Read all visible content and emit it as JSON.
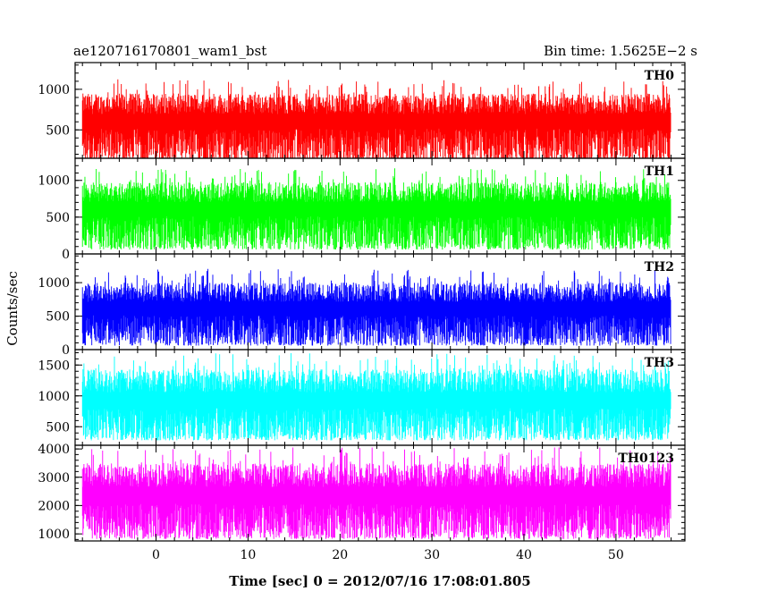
{
  "header": {
    "left_title": "ae120716170801_wam1_bst",
    "right_title": "Bin time: 1.5625E−2 s"
  },
  "chart_data": {
    "type": "line",
    "xlabel": "Time [sec] 0 = 2012/07/16 17:08:01.805",
    "ylabel": "Counts/sec",
    "xlim": [
      -8.8,
      57.5
    ],
    "x_range": [
      -8,
      56
    ],
    "x_ticks": [
      0,
      10,
      20,
      30,
      40,
      50
    ],
    "x_tick_labels": [
      "0",
      "10",
      "20",
      "30",
      "40",
      "50"
    ],
    "panels": [
      {
        "name": "TH0",
        "color": "#ff0000",
        "ylim": [
          150,
          1330
        ],
        "yticks": [
          500,
          1000
        ],
        "ytick_labels": [
          "500",
          "1000"
        ],
        "baseline": 110,
        "center": 560,
        "spread": 150,
        "peak": 1300
      },
      {
        "name": "TH1",
        "color": "#00ff00",
        "ylim": [
          0,
          1300
        ],
        "yticks": [
          0,
          500,
          1000
        ],
        "ytick_labels": [
          "0",
          "500",
          "1000"
        ],
        "baseline": 60,
        "center": 560,
        "spread": 160,
        "peak": 1300
      },
      {
        "name": "TH2",
        "color": "#0000ff",
        "ylim": [
          0,
          1430
        ],
        "yticks": [
          0,
          500,
          1000
        ],
        "ytick_labels": [
          "0",
          "500",
          "1000"
        ],
        "baseline": 60,
        "center": 560,
        "spread": 170,
        "peak": 1400
      },
      {
        "name": "TH3",
        "color": "#00ffff",
        "ylim": [
          200,
          1750
        ],
        "yticks": [
          500,
          1000,
          1500
        ],
        "ytick_labels": [
          "500",
          "1000",
          "1500"
        ],
        "baseline": 280,
        "center": 860,
        "spread": 220,
        "peak": 1700
      },
      {
        "name": "TH0123",
        "color": "#ff00ff",
        "ylim": [
          750,
          4130
        ],
        "yticks": [
          1000,
          2000,
          3000,
          4000
        ],
        "ytick_labels": [
          "1000",
          "2000",
          "3000",
          "4000"
        ],
        "baseline": 820,
        "center": 2200,
        "spread": 500,
        "peak": 4050
      }
    ]
  }
}
